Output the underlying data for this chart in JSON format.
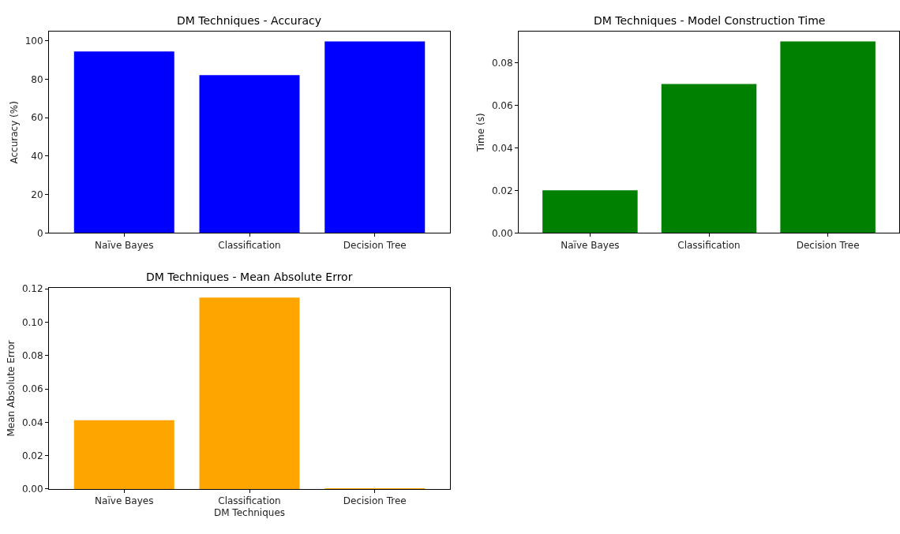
{
  "chart_data": [
    {
      "type": "bar",
      "title": "DM Techniques - Accuracy",
      "ylabel": "Accuracy (%)",
      "categories": [
        "Naïve Bayes",
        "Classification",
        "Decision Tree"
      ],
      "values": [
        94.4,
        82.1,
        99.6
      ],
      "color": "#0000ff",
      "ylim": [
        0,
        104.6
      ],
      "yticks": [
        0,
        20,
        40,
        60,
        80,
        100
      ]
    },
    {
      "type": "bar",
      "title": "DM Techniques - Model Construction Time",
      "ylabel": "Time (s)",
      "categories": [
        "Naïve Bayes",
        "Classification",
        "Decision Tree"
      ],
      "values": [
        0.02,
        0.07,
        0.09
      ],
      "color": "#008000",
      "ylim": [
        0,
        0.0945
      ],
      "yticks": [
        {
          "value": 0,
          "label": "0.00"
        },
        {
          "value": 0.02,
          "label": "0.02"
        },
        {
          "value": 0.04,
          "label": "0.04"
        },
        {
          "value": 0.06,
          "label": "0.06"
        },
        {
          "value": 0.08,
          "label": "0.08"
        }
      ]
    },
    {
      "type": "bar",
      "title": "DM Techniques - Mean Absolute Error",
      "xlabel": "DM Techniques",
      "ylabel": "Mean Absolute Error",
      "categories": [
        "Naïve Bayes",
        "Classification",
        "Decision Tree"
      ],
      "values": [
        0.0412,
        0.1147,
        0.0005
      ],
      "color": "#ffa500",
      "ylim": [
        0,
        0.1205
      ],
      "yticks": [
        {
          "value": 0,
          "label": "0.00"
        },
        {
          "value": 0.02,
          "label": "0.02"
        },
        {
          "value": 0.04,
          "label": "0.04"
        },
        {
          "value": 0.06,
          "label": "0.06"
        },
        {
          "value": 0.08,
          "label": "0.08"
        },
        {
          "value": 0.1,
          "label": "0.10"
        },
        {
          "value": 0.12,
          "label": "0.12"
        }
      ]
    }
  ]
}
